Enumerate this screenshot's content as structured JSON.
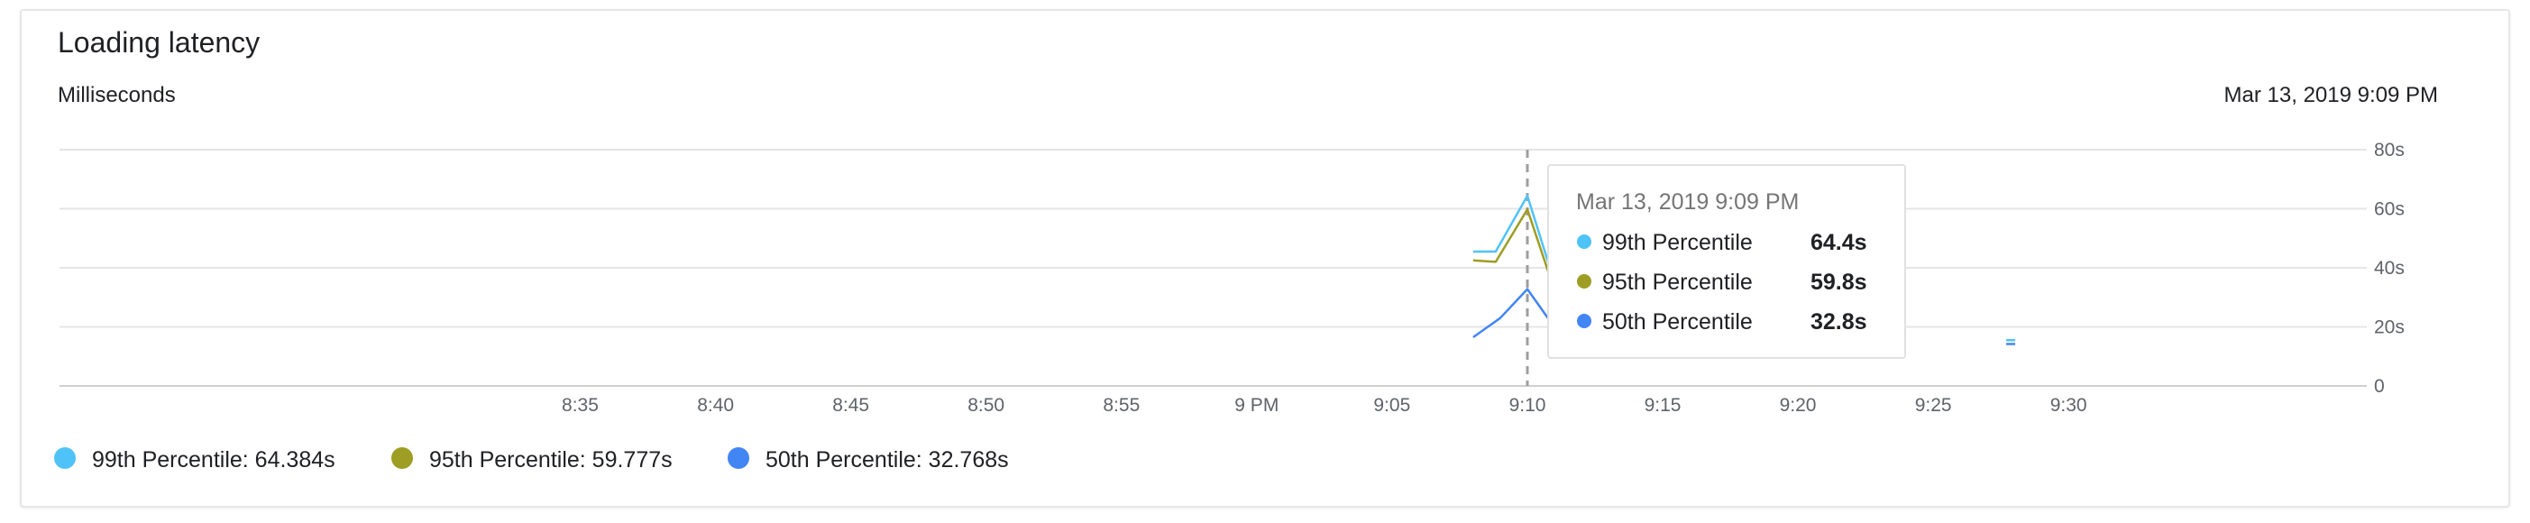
{
  "card": {
    "title": "Loading latency",
    "subtitle": "Milliseconds",
    "timestamp": "Mar 13, 2019 9:09 PM"
  },
  "chart_data": {
    "type": "line",
    "title": "Loading latency",
    "ylabel": "Milliseconds",
    "xlim": [
      8.5,
      9.55
    ],
    "ylim": [
      0,
      80
    ],
    "x_ticks": [
      {
        "value": 8.5833,
        "label": "8:35"
      },
      {
        "value": 8.6667,
        "label": "8:40"
      },
      {
        "value": 8.75,
        "label": "8:45"
      },
      {
        "value": 8.8333,
        "label": "8:50"
      },
      {
        "value": 8.9167,
        "label": "8:55"
      },
      {
        "value": 9.0,
        "label": "9 PM"
      },
      {
        "value": 9.0833,
        "label": "9:05"
      },
      {
        "value": 9.1667,
        "label": "9:10"
      },
      {
        "value": 9.25,
        "label": "9:15"
      },
      {
        "value": 9.3333,
        "label": "9:20"
      },
      {
        "value": 9.4167,
        "label": "9:25"
      },
      {
        "value": 9.5,
        "label": "9:30"
      }
    ],
    "y_ticks": [
      {
        "value": 0,
        "label": "0"
      },
      {
        "value": 20,
        "label": "20s"
      },
      {
        "value": 40,
        "label": "40s"
      },
      {
        "value": 60,
        "label": "60s"
      },
      {
        "value": 80,
        "label": "80s"
      }
    ],
    "grid": true,
    "crosshair_x": 9.1667,
    "series": [
      {
        "name": "99th Percentile",
        "color": "#4fc3f7",
        "points": [
          [
            9.1333,
            45.5
          ],
          [
            9.1472,
            45.5
          ],
          [
            9.1667,
            64.4
          ],
          [
            9.1806,
            40
          ]
        ]
      },
      {
        "name": "95th Percentile",
        "color": "#9e9d24",
        "points": [
          [
            9.1333,
            42.5
          ],
          [
            9.1472,
            42
          ],
          [
            9.1667,
            59.8
          ],
          [
            9.1806,
            37
          ]
        ]
      },
      {
        "name": "50th Percentile",
        "color": "#4285f4",
        "points": [
          [
            9.1333,
            16.5
          ],
          [
            9.15,
            23
          ],
          [
            9.1667,
            32.8
          ],
          [
            9.1806,
            22
          ],
          [
            9.2,
            14
          ]
        ]
      }
    ],
    "stray_marks": [
      {
        "x": 9.4644,
        "y": 15.5,
        "color": "#4fc3f7"
      },
      {
        "x": 9.4644,
        "y": 14.2,
        "color": "#4285f4"
      }
    ],
    "legend": {
      "position": "bottom-left",
      "items": [
        {
          "label": "99th Percentile: 64.384s",
          "color": "#4fc3f7"
        },
        {
          "label": "95th Percentile: 59.777s",
          "color": "#9e9d24"
        },
        {
          "label": "50th Percentile: 32.768s",
          "color": "#4285f4"
        }
      ]
    },
    "tooltip": {
      "title": "Mar 13, 2019 9:09 PM",
      "rows": [
        {
          "name": "99th Percentile",
          "value": "64.4s",
          "color": "#4fc3f7"
        },
        {
          "name": "95th Percentile",
          "value": "59.8s",
          "color": "#9e9d24"
        },
        {
          "name": "50th Percentile",
          "value": "32.8s",
          "color": "#4285f4"
        }
      ]
    }
  }
}
